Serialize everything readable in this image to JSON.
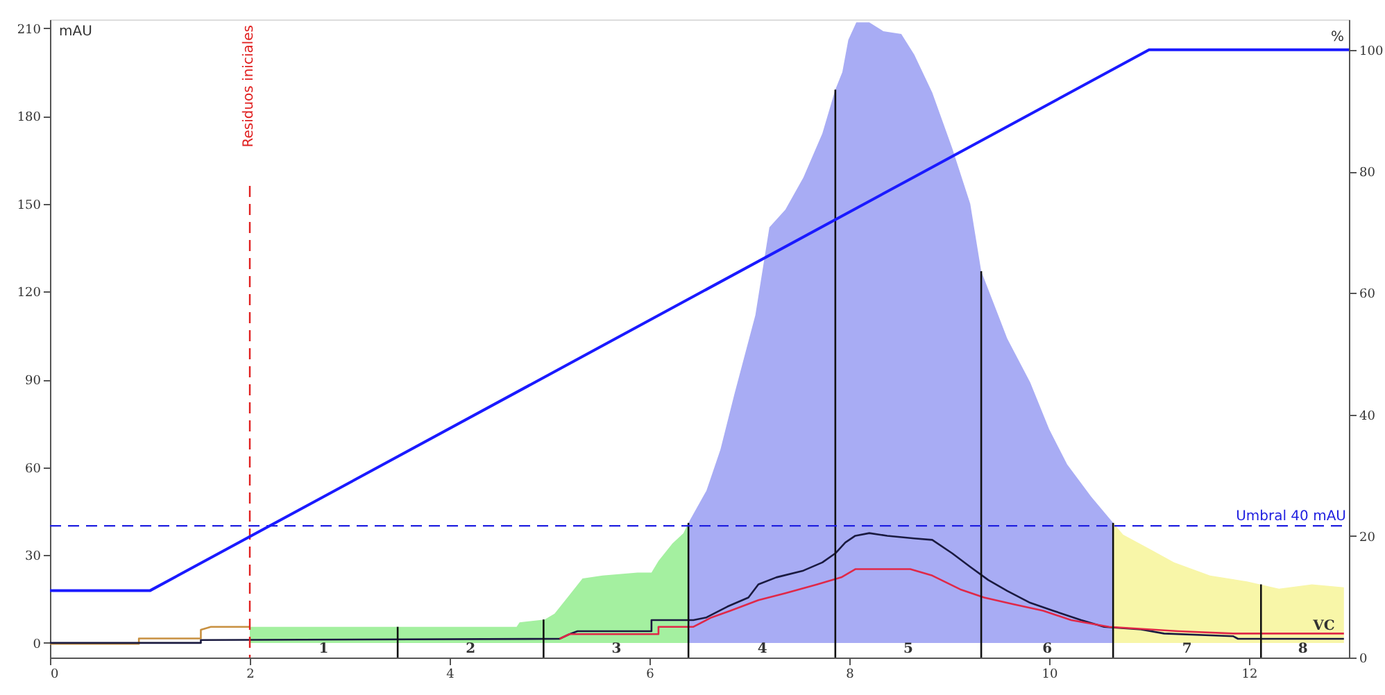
{
  "chart_data": {
    "type": "line",
    "ylabel": "mAU",
    "y2label": "%",
    "xlim": [
      0,
      13
    ],
    "xticks": [
      0,
      2,
      4,
      6,
      8,
      10,
      12
    ],
    "ylim": [
      -5,
      213
    ],
    "yticks": [
      0,
      30,
      60,
      90,
      120,
      150,
      180,
      210
    ],
    "y2lim": [
      0,
      105
    ],
    "y2ticks": [
      0,
      20,
      40,
      60,
      80,
      100
    ],
    "grid": false,
    "series": [
      {
        "color": "#c89040",
        "x": [
          0,
          0.89,
          0.89,
          1.51,
          1.51,
          1.61,
          2
        ],
        "values": [
          -0.3,
          -0.3,
          1.5,
          1.5,
          4.5,
          5.5,
          5.5
        ]
      },
      {
        "type": "area",
        "color": "#a4f0a0",
        "x": [
          2,
          4.67,
          4.7,
          4.95,
          5.05,
          5.19,
          5.33,
          5.53,
          5.88,
          6.02,
          6.09,
          6.23,
          6.34,
          6.39
        ],
        "values": [
          5.5,
          5.5,
          7,
          8,
          10,
          16,
          22,
          23,
          24,
          24,
          28,
          34,
          37.5,
          41
        ]
      },
      {
        "type": "area",
        "color": "#a8acf4",
        "x": [
          6.39,
          6.57,
          6.71,
          6.85,
          7.06,
          7.13,
          7.2,
          7.36,
          7.54,
          7.73,
          7.86,
          7.93,
          7.99,
          8.07,
          8.2,
          8.34,
          8.52,
          8.65,
          8.83,
          9.03,
          9.21,
          9.32,
          9.49,
          9.58,
          9.81,
          10.0,
          10.18,
          10.42,
          10.64
        ],
        "values": [
          41,
          52,
          66,
          85,
          112,
          127,
          142,
          148,
          159,
          174,
          189,
          195,
          206,
          212,
          212,
          209,
          208,
          201,
          188,
          169,
          150,
          127,
          112,
          104,
          89,
          73,
          61,
          50,
          41
        ]
      },
      {
        "type": "area",
        "color": "#f8f6a8",
        "x": [
          10.64,
          10.74,
          11.01,
          11.25,
          11.61,
          11.98,
          12.3,
          12.63,
          12.95
        ],
        "values": [
          41,
          37,
          32,
          27.5,
          23,
          21,
          18.5,
          20,
          19
        ]
      },
      {
        "color": "#1a1a40",
        "x": [
          0,
          1.51,
          1.51,
          5.1,
          5.2,
          5.28,
          6.02,
          6.02,
          6.44,
          6.57,
          6.78,
          6.99,
          7.09,
          7.27,
          7.54,
          7.73,
          7.86,
          7.96,
          8.06,
          8.2,
          8.38,
          8.65,
          8.83,
          9.03,
          9.21,
          9.39,
          9.58,
          9.81,
          10.04,
          10.32,
          10.55,
          10.92,
          11.15,
          11.84,
          11.89,
          12.95
        ],
        "values": [
          0,
          0,
          1,
          1.4,
          3,
          4,
          4,
          7.8,
          7.8,
          8.7,
          12.4,
          15.5,
          20,
          22.4,
          24.7,
          27.5,
          30.6,
          34.3,
          36.6,
          37.5,
          36.6,
          35.7,
          35.2,
          30.6,
          26,
          21.5,
          17.8,
          13.7,
          11,
          7.8,
          5.5,
          4.6,
          3.2,
          2.3,
          1.4,
          1.4
        ]
      },
      {
        "color": "#e02848",
        "x": [
          5.1,
          5.2,
          6.09,
          6.09,
          6.44,
          6.62,
          6.81,
          7.09,
          7.36,
          7.68,
          7.92,
          8.06,
          8.61,
          8.83,
          9.11,
          9.35,
          9.63,
          9.94,
          10.22,
          10.6,
          11.29,
          11.84,
          12.95
        ],
        "values": [
          1.4,
          3,
          3,
          5.5,
          5.5,
          8.7,
          11,
          14.6,
          17,
          20,
          22.4,
          25.2,
          25.2,
          23,
          18.3,
          15.5,
          13.3,
          11,
          7.8,
          5.5,
          4,
          3.2,
          3.2
        ]
      },
      {
        "axis": "y2",
        "color": "#1a1aff",
        "x": [
          0,
          1,
          11,
          13
        ],
        "values": [
          11,
          11,
          100,
          100
        ]
      },
      {
        "color": "#111111",
        "x": [
          3.48,
          3.48
        ],
        "values": [
          -5,
          5.5
        ]
      },
      {
        "color": "#111111",
        "x": [
          4.94,
          4.94
        ],
        "values": [
          -5,
          8
        ]
      },
      {
        "color": "#111111",
        "x": [
          6.39,
          6.39
        ],
        "values": [
          -5,
          41
        ]
      },
      {
        "color": "#111111",
        "x": [
          7.86,
          7.86
        ],
        "values": [
          -5,
          189
        ]
      },
      {
        "color": "#111111",
        "x": [
          9.32,
          9.32
        ],
        "values": [
          -5,
          127
        ]
      },
      {
        "color": "#111111",
        "x": [
          10.64,
          10.64
        ],
        "values": [
          -5,
          41
        ]
      },
      {
        "color": "#111111",
        "x": [
          12.12,
          12.12
        ],
        "values": [
          -5,
          20
        ]
      }
    ],
    "ref_lines": [
      {
        "axis": "x",
        "value": 2,
        "label": "Residuos iniciales",
        "color": "#e02020",
        "line_style": "dashed"
      },
      {
        "axis": "y",
        "value": 40,
        "label": "Umbral 40 mAU",
        "color": "#2020e0",
        "line_style": "dashed"
      }
    ],
    "annotations": [
      {
        "text": "1",
        "x": 2.74,
        "y": -2
      },
      {
        "text": "2",
        "x": 4.21,
        "y": -2
      },
      {
        "text": "3",
        "x": 5.67,
        "y": -2
      },
      {
        "text": "4",
        "x": 7.13,
        "y": -2
      },
      {
        "text": "5",
        "x": 8.59,
        "y": -2
      },
      {
        "text": "6",
        "x": 9.98,
        "y": -2
      },
      {
        "text": "7",
        "x": 11.38,
        "y": -2
      },
      {
        "text": "8",
        "x": 12.54,
        "y": -2
      },
      {
        "text": "VC",
        "x": 12.75,
        "y": 6
      }
    ]
  }
}
